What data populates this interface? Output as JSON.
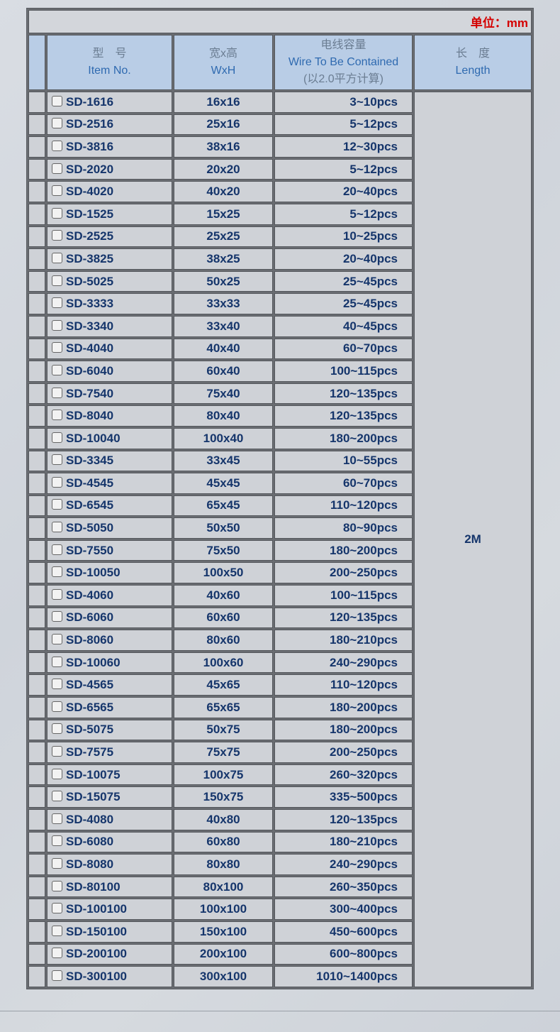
{
  "unit_label": "单位：mm",
  "header": {
    "item_cn": "型　号",
    "item_en": "Item No.",
    "size_cn": "宽x高",
    "size_en": "WxH",
    "cap_cn": "电线容量",
    "cap_en": "Wire To Be Contained",
    "cap_note": "(以2.0平方计算)",
    "len_cn": "长　度",
    "len_en": "Length"
  },
  "length_value": "2M",
  "rows": [
    [
      "SD-1616",
      "16x16",
      "3~10pcs"
    ],
    [
      "SD-2516",
      "25x16",
      "5~12pcs"
    ],
    [
      "SD-3816",
      "38x16",
      "12~30pcs"
    ],
    [
      "SD-2020",
      "20x20",
      "5~12pcs"
    ],
    [
      "SD-4020",
      "40x20",
      "20~40pcs"
    ],
    [
      "SD-1525",
      "15x25",
      "5~12pcs"
    ],
    [
      "SD-2525",
      "25x25",
      "10~25pcs"
    ],
    [
      "SD-3825",
      "38x25",
      "20~40pcs"
    ],
    [
      "SD-5025",
      "50x25",
      "25~45pcs"
    ],
    [
      "SD-3333",
      "33x33",
      "25~45pcs"
    ],
    [
      "SD-3340",
      "33x40",
      "40~45pcs"
    ],
    [
      "SD-4040",
      "40x40",
      "60~70pcs"
    ],
    [
      "SD-6040",
      "60x40",
      "100~115pcs"
    ],
    [
      "SD-7540",
      "75x40",
      "120~135pcs"
    ],
    [
      "SD-8040",
      "80x40",
      "120~135pcs"
    ],
    [
      "SD-10040",
      "100x40",
      "180~200pcs"
    ],
    [
      "SD-3345",
      "33x45",
      "10~55pcs"
    ],
    [
      "SD-4545",
      "45x45",
      "60~70pcs"
    ],
    [
      "SD-6545",
      "65x45",
      "110~120pcs"
    ],
    [
      "SD-5050",
      "50x50",
      "80~90pcs"
    ],
    [
      "SD-7550",
      "75x50",
      "180~200pcs"
    ],
    [
      "SD-10050",
      "100x50",
      "200~250pcs"
    ],
    [
      "SD-4060",
      "40x60",
      "100~115pcs"
    ],
    [
      "SD-6060",
      "60x60",
      "120~135pcs"
    ],
    [
      "SD-8060",
      "80x60",
      "180~210pcs"
    ],
    [
      "SD-10060",
      "100x60",
      "240~290pcs"
    ],
    [
      "SD-4565",
      "45x65",
      "110~120pcs"
    ],
    [
      "SD-6565",
      "65x65",
      "180~200pcs"
    ],
    [
      "SD-5075",
      "50x75",
      "180~200pcs"
    ],
    [
      "SD-7575",
      "75x75",
      "200~250pcs"
    ],
    [
      "SD-10075",
      "100x75",
      "260~320pcs"
    ],
    [
      "SD-15075",
      "150x75",
      "335~500pcs"
    ],
    [
      "SD-4080",
      "40x80",
      "120~135pcs"
    ],
    [
      "SD-6080",
      "60x80",
      "180~210pcs"
    ],
    [
      "SD-8080",
      "80x80",
      "240~290pcs"
    ],
    [
      "SD-80100",
      "80x100",
      "260~350pcs"
    ],
    [
      "SD-100100",
      "100x100",
      "300~400pcs"
    ],
    [
      "SD-150100",
      "150x100",
      "450~600pcs"
    ],
    [
      "SD-200100",
      "200x100",
      "600~800pcs"
    ],
    [
      "SD-300100",
      "300x100",
      "1010~1400pcs"
    ]
  ]
}
